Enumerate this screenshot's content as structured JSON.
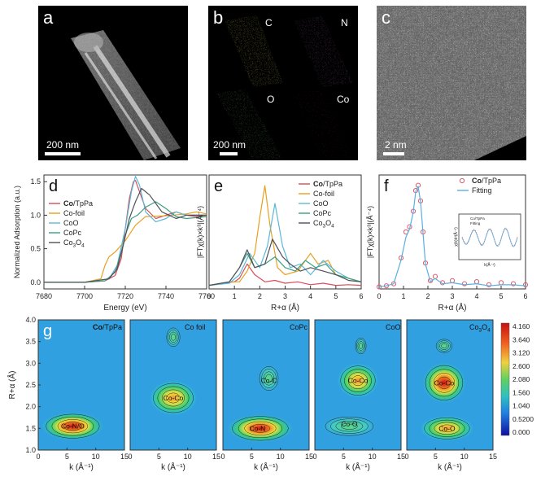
{
  "panel_labels": {
    "a": "a",
    "b": "b",
    "c": "c",
    "d": "d",
    "e": "e",
    "f": "f",
    "g": "g"
  },
  "micrographs": {
    "a": {
      "scale": "200 nm"
    },
    "b": {
      "scale": "200 nm",
      "elements": [
        "C",
        "N",
        "O",
        "Co"
      ],
      "colors": [
        "#e8e030",
        "#d040d0",
        "#40c040",
        "#e03020"
      ]
    },
    "c": {
      "scale": "2 nm"
    }
  },
  "chart_data": [
    {
      "id": "d",
      "type": "line",
      "title": "",
      "xlabel": "Energy (eV)",
      "ylabel": "Normalized Adsorption (a.u.)",
      "xlim": [
        7680,
        7760
      ],
      "ylim": [
        -0.1,
        1.6
      ],
      "xticks": [
        7680,
        7700,
        7720,
        7740,
        7760
      ],
      "yticks": [
        0.0,
        0.5,
        1.0,
        1.5
      ],
      "legend": [
        "Co/TpPa",
        "Co-foil",
        "CoO",
        "CoPc",
        "Co3O4"
      ],
      "legend_display": [
        [
          "Co",
          "/TpPa"
        ],
        [
          "Co-foil",
          ""
        ],
        [
          "CoO",
          ""
        ],
        [
          "CoPc",
          ""
        ],
        [
          "Co",
          "3",
          "O",
          "4"
        ]
      ],
      "legend_position": "top-left",
      "series": [
        {
          "name": "Co/TpPa",
          "color": "#d94d5a",
          "x": [
            7680,
            7700,
            7710,
            7715,
            7718,
            7720,
            7722,
            7724,
            7725,
            7727,
            7730,
            7735,
            7740,
            7745,
            7750,
            7755,
            7760
          ],
          "y": [
            0,
            0,
            0.02,
            0.1,
            0.35,
            0.8,
            1.25,
            1.5,
            1.52,
            1.35,
            1.1,
            0.95,
            1.0,
            1.05,
            1.0,
            0.98,
            1.0
          ]
        },
        {
          "name": "Co-foil",
          "color": "#e8a020",
          "x": [
            7680,
            7700,
            7708,
            7710,
            7712,
            7715,
            7720,
            7725,
            7730,
            7740,
            7750,
            7755,
            7760
          ],
          "y": [
            0,
            0,
            0.05,
            0.25,
            0.38,
            0.45,
            0.62,
            0.85,
            0.98,
            0.99,
            1.02,
            1.05,
            1.02
          ]
        },
        {
          "name": "CoO",
          "color": "#5ab8d8",
          "x": [
            7680,
            7700,
            7712,
            7716,
            7720,
            7723,
            7725,
            7727,
            7730,
            7735,
            7740,
            7745,
            7750,
            7760
          ],
          "y": [
            0,
            0,
            0.05,
            0.25,
            0.8,
            1.35,
            1.58,
            1.45,
            1.05,
            0.9,
            0.95,
            1.05,
            1.0,
            1.0
          ]
        },
        {
          "name": "CoPc",
          "color": "#3aa080",
          "x": [
            7680,
            7700,
            7710,
            7715,
            7718,
            7720,
            7723,
            7726,
            7730,
            7735,
            7740,
            7745,
            7750,
            7760
          ],
          "y": [
            0,
            0,
            0.02,
            0.15,
            0.45,
            0.7,
            0.95,
            1.0,
            1.12,
            1.2,
            1.1,
            0.98,
            0.95,
            0.98
          ]
        },
        {
          "name": "Co3O4",
          "color": "#505058",
          "x": [
            7680,
            7700,
            7712,
            7716,
            7719,
            7722,
            7725,
            7728,
            7732,
            7738,
            7745,
            7750,
            7760
          ],
          "y": [
            0,
            0,
            0.05,
            0.2,
            0.55,
            0.95,
            1.2,
            1.4,
            1.3,
            1.05,
            0.95,
            1.0,
            1.0
          ]
        }
      ]
    },
    {
      "id": "e",
      "type": "line",
      "xlabel": "R+α (Å)",
      "ylabel": "|FTχ(k)×k³|(Å⁻⁴)",
      "xlim": [
        0,
        6
      ],
      "xticks": [
        0,
        1,
        2,
        3,
        4,
        5,
        6
      ],
      "legend": [
        "Co/TpPa",
        "Co-foil",
        "CoO",
        "CoPc",
        "Co3O4"
      ],
      "legend_display": [
        [
          "Co",
          "/TpPa"
        ],
        [
          "Co-foil",
          ""
        ],
        [
          "CoO",
          ""
        ],
        [
          "CoPc",
          ""
        ],
        [
          "Co",
          "3",
          "O",
          "4"
        ]
      ],
      "legend_position": "top-right",
      "series": [
        {
          "name": "Co/TpPa",
          "color": "#d94d5a",
          "x": [
            0,
            0.5,
            1.0,
            1.2,
            1.5,
            1.8,
            2.2,
            2.6,
            3.0,
            3.5,
            4.0,
            4.5,
            5.0,
            5.5,
            6.0
          ],
          "y": [
            0.05,
            0.08,
            0.1,
            0.15,
            0.35,
            0.2,
            0.1,
            0.12,
            0.08,
            0.1,
            0.06,
            0.08,
            0.05,
            0.06,
            0.05
          ]
        },
        {
          "name": "Co-foil",
          "color": "#e8a020",
          "x": [
            0,
            0.8,
            1.2,
            1.5,
            1.8,
            2.0,
            2.2,
            2.4,
            2.7,
            3.0,
            3.5,
            4.0,
            4.3,
            4.7,
            5.0,
            5.5,
            6.0
          ],
          "y": [
            0.05,
            0.1,
            0.1,
            0.25,
            0.5,
            1.0,
            1.45,
            0.9,
            0.3,
            0.2,
            0.25,
            0.5,
            0.35,
            0.4,
            0.2,
            0.15,
            0.1
          ]
        },
        {
          "name": "CoO",
          "color": "#5ab8d8",
          "x": [
            0,
            0.8,
            1.2,
            1.6,
            2.0,
            2.3,
            2.6,
            2.9,
            3.2,
            3.6,
            4.0,
            4.5,
            5.0,
            5.5,
            6.0
          ],
          "y": [
            0.05,
            0.08,
            0.2,
            0.5,
            0.3,
            0.6,
            1.2,
            0.6,
            0.3,
            0.35,
            0.2,
            0.4,
            0.25,
            0.15,
            0.1
          ]
        },
        {
          "name": "CoPc",
          "color": "#3aa080",
          "x": [
            0,
            0.8,
            1.2,
            1.5,
            1.8,
            2.2,
            2.6,
            3.0,
            3.4,
            3.8,
            4.2,
            4.6,
            5.0,
            5.5,
            6.0
          ],
          "y": [
            0.05,
            0.1,
            0.3,
            0.5,
            0.3,
            0.35,
            0.45,
            0.3,
            0.25,
            0.4,
            0.3,
            0.35,
            0.2,
            0.15,
            0.1
          ]
        },
        {
          "name": "Co3O4",
          "color": "#505058",
          "x": [
            0,
            0.8,
            1.2,
            1.5,
            1.8,
            2.2,
            2.5,
            2.9,
            3.2,
            3.6,
            4.0,
            4.5,
            5.0,
            5.5,
            6.0
          ],
          "y": [
            0.05,
            0.1,
            0.3,
            0.55,
            0.3,
            0.35,
            0.7,
            0.45,
            0.35,
            0.25,
            0.3,
            0.25,
            0.2,
            0.12,
            0.1
          ]
        }
      ]
    },
    {
      "id": "f",
      "type": "line",
      "xlabel": "R+α (Å)",
      "ylabel": "|FTχ(k)×k³|(Å⁻⁴)",
      "xlim": [
        0,
        6
      ],
      "xticks": [
        0,
        1,
        2,
        3,
        4,
        5,
        6
      ],
      "legend": [
        "Co/TpPa",
        "Fitting"
      ],
      "legend_display": [
        [
          "Co",
          "/TpPa"
        ],
        [
          "Fitting",
          ""
        ]
      ],
      "legend_position": "top-right",
      "inset": {
        "xlabel": "k(Å⁻¹)",
        "ylabel": "χ(k)k³(Å⁻³)",
        "legend": [
          "Co/TpPa",
          "Fitting"
        ]
      },
      "series": [
        {
          "name": "Co/TpPa",
          "color": "#e05a6a",
          "style": "circles",
          "x": [
            0,
            0.3,
            0.6,
            0.9,
            1.1,
            1.25,
            1.4,
            1.5,
            1.6,
            1.7,
            1.8,
            1.9,
            2.1,
            2.3,
            2.6,
            3.0,
            3.5,
            4.0,
            4.5,
            5.0,
            5.5,
            6.0
          ],
          "y": [
            0.02,
            0.03,
            0.05,
            0.3,
            0.55,
            0.6,
            0.75,
            0.95,
            1.0,
            0.85,
            0.55,
            0.25,
            0.08,
            0.12,
            0.06,
            0.08,
            0.05,
            0.07,
            0.04,
            0.06,
            0.05,
            0.04
          ]
        },
        {
          "name": "Fitting",
          "color": "#5ab0e0",
          "style": "line",
          "x": [
            0,
            0.3,
            0.6,
            0.9,
            1.1,
            1.25,
            1.4,
            1.5,
            1.6,
            1.7,
            1.8,
            1.9,
            2.1,
            2.3,
            2.6,
            3.0,
            3.5,
            4.0,
            4.5,
            5.0,
            5.5,
            6.0
          ],
          "y": [
            0.02,
            0.03,
            0.05,
            0.28,
            0.5,
            0.58,
            0.74,
            0.94,
            0.99,
            0.84,
            0.54,
            0.24,
            0.07,
            0.1,
            0.05,
            0.06,
            0.04,
            0.05,
            0.03,
            0.04,
            0.04,
            0.03
          ]
        }
      ]
    },
    {
      "id": "g",
      "type": "heatmap",
      "xlabel": "k (Å⁻¹)",
      "ylabel": "R+α (Å)",
      "xlim": [
        0,
        15
      ],
      "ylim": [
        1.0,
        4.0
      ],
      "xticks": [
        0,
        5,
        10,
        15
      ],
      "yticks": [
        1.0,
        1.5,
        2.0,
        2.5,
        3.0,
        3.5,
        4.0
      ],
      "colorbar": [
        "4.160",
        "3.640",
        "3.120",
        "2.600",
        "2.080",
        "1.560",
        "1.040",
        "0.5200",
        "0.000"
      ],
      "maps": [
        {
          "title": "Co/TpPa",
          "title_parts": [
            "Co",
            "/TpPa"
          ],
          "labels": [
            {
              "text": "Co-N/O",
              "k": 6,
              "r": 1.55
            }
          ]
        },
        {
          "title": "Co foil",
          "title_parts": [
            "Co foil"
          ],
          "labels": [
            {
              "text": "Co-Co",
              "k": 7.5,
              "r": 2.2
            }
          ]
        },
        {
          "title": "CoPc",
          "title_parts": [
            "CoPc"
          ],
          "labels": [
            {
              "text": "Co-C",
              "k": 8,
              "r": 2.6
            },
            {
              "text": "Co-N",
              "k": 6,
              "r": 1.5
            }
          ]
        },
        {
          "title": "CoO",
          "title_parts": [
            "CoO"
          ],
          "labels": [
            {
              "text": "Co-Co",
              "k": 7.5,
              "r": 2.6
            },
            {
              "text": "Co-O",
              "k": 6,
              "r": 1.6
            }
          ]
        },
        {
          "title": "Co3O4",
          "title_parts": [
            "Co",
            "3",
            "O",
            "4"
          ],
          "labels": [
            {
              "text": "Co-Co",
              "k": 6.5,
              "r": 2.55
            },
            {
              "text": "Co-O",
              "k": 7,
              "r": 1.5
            }
          ]
        }
      ]
    }
  ]
}
